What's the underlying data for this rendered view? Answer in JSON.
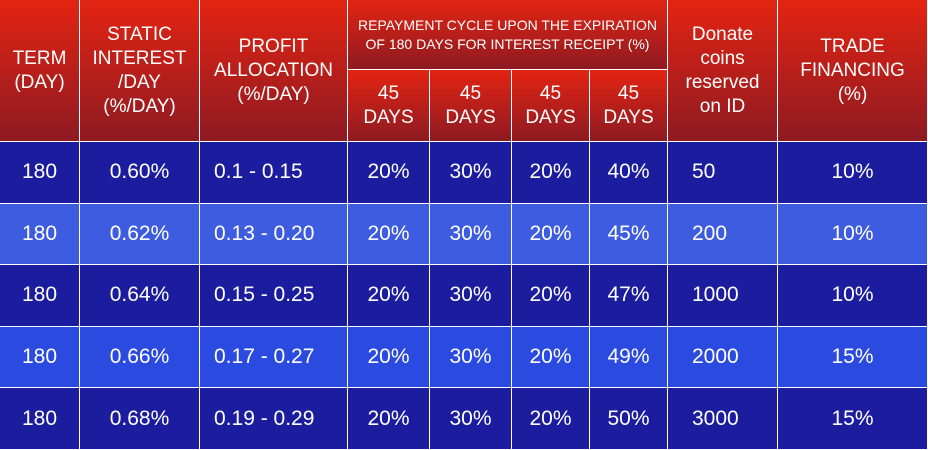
{
  "table": {
    "headers": [
      [
        "TERM",
        "(DAY)"
      ],
      [
        "STATIC",
        "INTEREST",
        "/DAY",
        "(%/DAY)"
      ],
      [
        "PROFIT",
        "ALLOCATION",
        "(%/DAY)"
      ],
      [
        "REPAYMENT CYCLE UPON THE EXPIRATION",
        "OF 180 DAYS FOR INTEREST RECEIPT (%)"
      ],
      [
        "Donate",
        "coins",
        "reserved",
        "on ID"
      ],
      [
        "TRADE",
        "FINANCING",
        "(%)"
      ]
    ],
    "subheaders": [
      [
        "45",
        "DAYS"
      ],
      [
        "45",
        "DAYS"
      ],
      [
        "45",
        "DAYS"
      ],
      [
        "45",
        "DAYS"
      ]
    ],
    "rows": [
      [
        "180",
        "0.60%",
        "0.1 - 0.15",
        "20%",
        "30%",
        "20%",
        "40%",
        "50",
        "10%"
      ],
      [
        "180",
        "0.62%",
        "0.13 - 0.20",
        "20%",
        "30%",
        "20%",
        "45%",
        "200",
        "10%"
      ],
      [
        "180",
        "0.64%",
        "0.15 - 0.25",
        "20%",
        "30%",
        "20%",
        "47%",
        "1000",
        "10%"
      ],
      [
        "180",
        "0.66%",
        "0.17 - 0.27",
        "20%",
        "30%",
        "20%",
        "49%",
        "2000",
        "15%"
      ],
      [
        "180",
        "0.68%",
        "0.19 - 0.29",
        "20%",
        "30%",
        "20%",
        "50%",
        "3000",
        "15%"
      ]
    ]
  }
}
